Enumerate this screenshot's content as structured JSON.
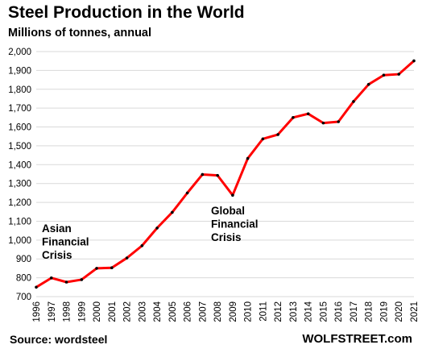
{
  "header": {
    "title": "Steel Production in the World",
    "subtitle": "Millions of tonnes, annual"
  },
  "footer": {
    "source": "Source: wordsteel",
    "brand": "WOLFSTREET.com"
  },
  "chart_data": {
    "type": "line",
    "title": "Steel Production in the World",
    "subtitle": "Millions of tonnes, annual",
    "xlabel": "",
    "ylabel": "",
    "x": [
      "1996",
      "1997",
      "1998",
      "1999",
      "2000",
      "2001",
      "2002",
      "2003",
      "2004",
      "2005",
      "2006",
      "2007",
      "2008",
      "2009",
      "2010",
      "2011",
      "2012",
      "2013",
      "2014",
      "2015",
      "2016",
      "2017",
      "2018",
      "2019",
      "2020",
      "2021"
    ],
    "series": [
      {
        "values": [
          750,
          799,
          777,
          790,
          850,
          853,
          905,
          970,
          1064,
          1147,
          1250,
          1348,
          1343,
          1238,
          1433,
          1537,
          1560,
          1650,
          1670,
          1621,
          1628,
          1735,
          1826,
          1875,
          1880,
          1951
        ],
        "color": "#ff0000",
        "marker_color": "#000000"
      }
    ],
    "ylim": [
      700,
      2000
    ],
    "yticks": [
      700,
      800,
      900,
      1000,
      1100,
      1200,
      1300,
      1400,
      1500,
      1600,
      1700,
      1800,
      1900,
      2000
    ],
    "ytick_labels": [
      "700",
      "800",
      "900",
      "1,000",
      "1,100",
      "1,200",
      "1,300",
      "1,400",
      "1,500",
      "1,600",
      "1,700",
      "1,800",
      "1,900",
      "2,000"
    ],
    "grid": true,
    "grid_color": "#d9d9d9",
    "annotations": [
      {
        "lines": [
          "Asian",
          "Financial",
          "Crisis"
        ],
        "year": "1997"
      },
      {
        "lines": [
          "Global",
          "Financial",
          "Crisis"
        ],
        "year": "2008"
      }
    ]
  }
}
